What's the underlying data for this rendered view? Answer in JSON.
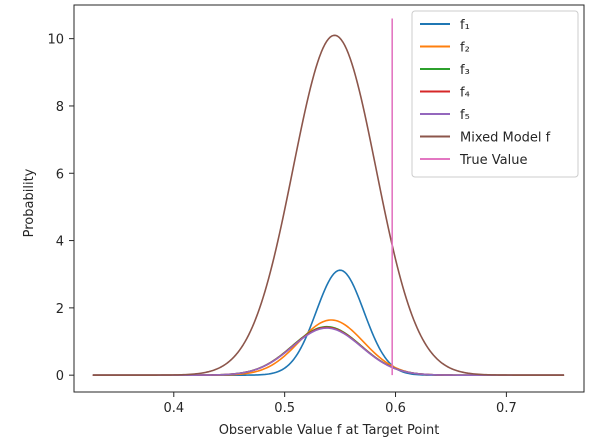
{
  "chart_data": {
    "type": "line",
    "title": "",
    "xlabel": "Observable Value f at Target Point",
    "ylabel": "Probability",
    "xlim": [
      0.31,
      0.77
    ],
    "ylim": [
      -0.5,
      11.0
    ],
    "xticks": [
      0.4,
      0.5,
      0.6,
      0.7
    ],
    "xtick_labels": [
      "0.4",
      "0.5",
      "0.6",
      "0.7"
    ],
    "yticks": [
      0,
      2,
      4,
      6,
      8,
      10
    ],
    "ytick_labels": [
      "0",
      "2",
      "4",
      "6",
      "8",
      "10"
    ],
    "grid": false,
    "legend_position": "top-right",
    "series": [
      {
        "name": "f₁",
        "color": "#1f77b4",
        "shape": "gaussian",
        "mu": 0.55,
        "sigma": 0.0215,
        "peak": 3.12,
        "x_range": [
          0.327,
          0.752
        ]
      },
      {
        "name": "f₂",
        "color": "#ff7f0e",
        "shape": "gaussian",
        "mu": 0.542,
        "sigma": 0.029,
        "peak": 1.64,
        "x_range": [
          0.327,
          0.752
        ]
      },
      {
        "name": "f₃",
        "color": "#2ca02c",
        "shape": "gaussian",
        "mu": 0.538,
        "sigma": 0.031,
        "peak": 1.44,
        "x_range": [
          0.327,
          0.752
        ]
      },
      {
        "name": "f₄",
        "color": "#d62728",
        "shape": "gaussian",
        "mu": 0.538,
        "sigma": 0.031,
        "peak": 1.42,
        "x_range": [
          0.327,
          0.752
        ]
      },
      {
        "name": "f₅",
        "color": "#9467bd",
        "shape": "gaussian",
        "mu": 0.538,
        "sigma": 0.031,
        "peak": 1.4,
        "x_range": [
          0.327,
          0.752
        ]
      },
      {
        "name": "Mixed Model f",
        "color": "#8c564b",
        "shape": "gaussian",
        "mu": 0.545,
        "sigma": 0.0375,
        "peak": 10.1,
        "x_range": [
          0.327,
          0.752
        ]
      },
      {
        "name": "True Value",
        "color": "#e377c2",
        "shape": "vline",
        "x": 0.597,
        "y_range": [
          0,
          10.6
        ]
      }
    ]
  }
}
